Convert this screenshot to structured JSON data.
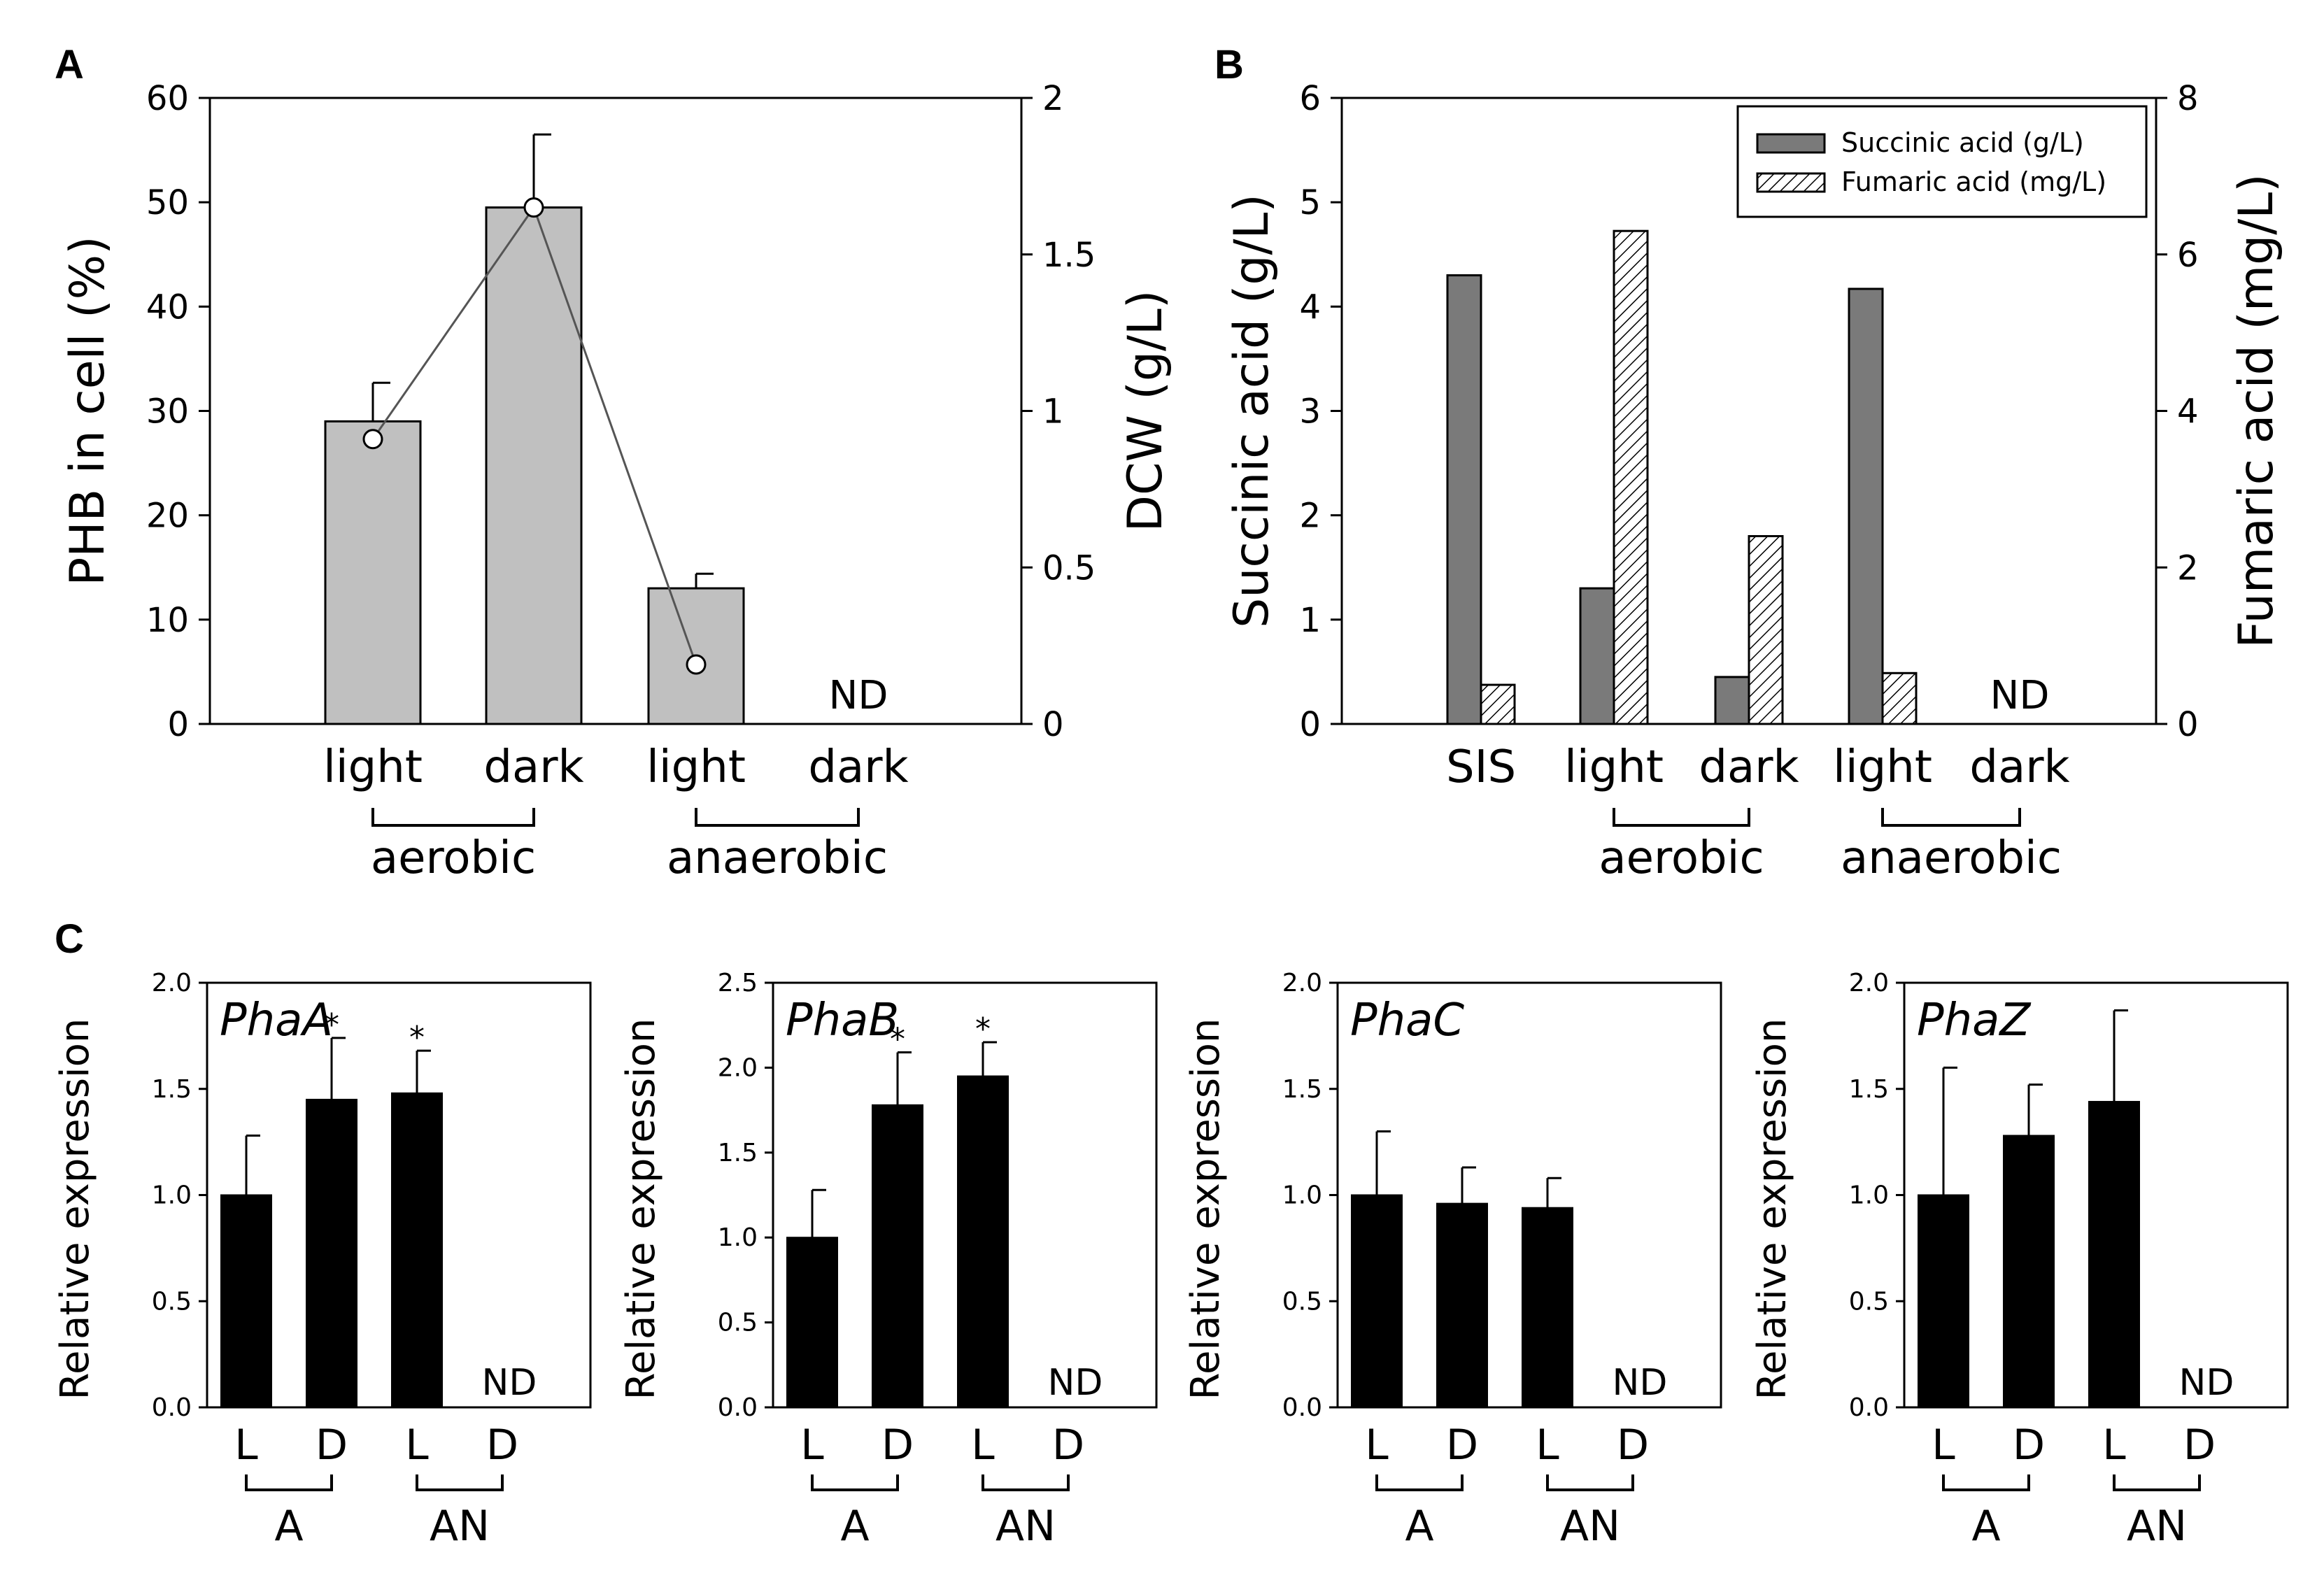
{
  "chart_data": [
    {
      "panel": "A",
      "type": "bar",
      "categories": [
        "light",
        "dark",
        "light",
        "dark"
      ],
      "groups": [
        {
          "label": "aerobic",
          "members": [
            0,
            1
          ]
        },
        {
          "label": "anaerobic",
          "members": [
            2,
            3
          ]
        }
      ],
      "series": [
        {
          "name": "PHB in cell (%)",
          "type": "bar",
          "axis": "left",
          "values": [
            29,
            49.5,
            13,
            null
          ],
          "errors": [
            3.7,
            7,
            1.4,
            null
          ]
        },
        {
          "name": "DCW (g/L)",
          "type": "line",
          "axis": "right",
          "values": [
            0.91,
            1.65,
            0.19,
            null
          ]
        }
      ],
      "ylabel": "PHB in cell (%)",
      "y2label": "DCW (g/L)",
      "ylim": [
        0,
        60
      ],
      "yticks": [
        0,
        10,
        20,
        30,
        40,
        50,
        60
      ],
      "y2lim": [
        0,
        2
      ],
      "y2ticks": [
        0,
        0.5,
        1,
        1.5,
        2
      ],
      "y2ticklabels": [
        "0",
        "0.5",
        "1",
        "1.5",
        "2"
      ],
      "annotations": [
        {
          "category": 3,
          "text": "ND"
        }
      ],
      "colors": {
        "bar": "#c0c0c0",
        "line": "#555555",
        "marker": "#ffffff"
      }
    },
    {
      "panel": "B",
      "type": "bar",
      "categories": [
        "SIS",
        "light",
        "dark",
        "light",
        "dark"
      ],
      "groups": [
        {
          "label": "aerobic",
          "members": [
            1,
            2
          ]
        },
        {
          "label": "anaerobic",
          "members": [
            3,
            4
          ]
        }
      ],
      "series": [
        {
          "name": "Succinic acid (g/L)",
          "axis": "left",
          "pattern": "solid",
          "values": [
            4.3,
            1.3,
            0.45,
            4.17,
            null
          ]
        },
        {
          "name": "Fumaric acid (mg/L)",
          "axis": "right",
          "pattern": "hatched",
          "values": [
            0.5,
            6.3,
            2.4,
            0.65,
            null
          ]
        }
      ],
      "ylabel": "Succinic acid (g/L)",
      "y2label": "Fumaric acid (mg/L)",
      "ylim": [
        0,
        6
      ],
      "yticks": [
        0,
        1,
        2,
        3,
        4,
        5,
        6
      ],
      "y2lim": [
        0,
        8
      ],
      "y2ticks": [
        0,
        2,
        4,
        6,
        8
      ],
      "legend": {
        "position": "top-right",
        "entries": [
          "Succinic acid (g/L)",
          "Fumaric acid (mg/L)"
        ]
      },
      "annotations": [
        {
          "category": 4,
          "text": "ND"
        }
      ],
      "colors": {
        "succinic": "#7a7a7a",
        "fumaric": "#ffffff"
      }
    },
    {
      "panel": "C",
      "type": "bar",
      "gene": "PhaA",
      "categories": [
        "L",
        "D",
        "L",
        "D"
      ],
      "groups": [
        {
          "label": "A",
          "members": [
            0,
            1
          ]
        },
        {
          "label": "AN",
          "members": [
            2,
            3
          ]
        }
      ],
      "values": [
        1.0,
        1.45,
        1.48,
        null
      ],
      "errors": [
        0.28,
        0.29,
        0.2,
        null
      ],
      "significance": [
        "",
        "*",
        "*",
        ""
      ],
      "ylabel": "Relative expression",
      "ylim": [
        0,
        2.0
      ],
      "yticks": [
        0,
        0.5,
        1,
        1.5,
        2
      ],
      "yticklabels": [
        "0.0",
        "0.5",
        "1.0",
        "1.5",
        "2.0"
      ],
      "annotations": [
        {
          "category": 3,
          "text": "ND"
        }
      ]
    },
    {
      "panel": "C",
      "type": "bar",
      "gene": "PhaB",
      "categories": [
        "L",
        "D",
        "L",
        "D"
      ],
      "groups": [
        {
          "label": "A",
          "members": [
            0,
            1
          ]
        },
        {
          "label": "AN",
          "members": [
            2,
            3
          ]
        }
      ],
      "values": [
        1.0,
        1.78,
        1.95,
        null
      ],
      "errors": [
        0.28,
        0.31,
        0.2,
        null
      ],
      "significance": [
        "",
        "*",
        "*",
        ""
      ],
      "ylabel": "Relative expression",
      "ylim": [
        0,
        2.5
      ],
      "yticks": [
        0,
        0.5,
        1,
        1.5,
        2,
        2.5
      ],
      "yticklabels": [
        "0.0",
        "0.5",
        "1.0",
        "1.5",
        "2.0",
        "2.5"
      ],
      "annotations": [
        {
          "category": 3,
          "text": "ND"
        }
      ]
    },
    {
      "panel": "C",
      "type": "bar",
      "gene": "PhaC",
      "categories": [
        "L",
        "D",
        "L",
        "D"
      ],
      "groups": [
        {
          "label": "A",
          "members": [
            0,
            1
          ]
        },
        {
          "label": "AN",
          "members": [
            2,
            3
          ]
        }
      ],
      "values": [
        1.0,
        0.96,
        0.94,
        null
      ],
      "errors": [
        0.3,
        0.17,
        0.14,
        null
      ],
      "significance": [
        "",
        "",
        "",
        ""
      ],
      "ylabel": "Relative expression",
      "ylim": [
        0,
        2.0
      ],
      "yticks": [
        0,
        0.5,
        1,
        1.5,
        2
      ],
      "yticklabels": [
        "0.0",
        "0.5",
        "1.0",
        "1.5",
        "2.0"
      ],
      "annotations": [
        {
          "category": 3,
          "text": "ND"
        }
      ]
    },
    {
      "panel": "C",
      "type": "bar",
      "gene": "PhaZ",
      "categories": [
        "L",
        "D",
        "L",
        "D"
      ],
      "groups": [
        {
          "label": "A",
          "members": [
            0,
            1
          ]
        },
        {
          "label": "AN",
          "members": [
            2,
            3
          ]
        }
      ],
      "values": [
        1.0,
        1.28,
        1.44,
        null
      ],
      "errors": [
        0.6,
        0.24,
        0.43,
        null
      ],
      "significance": [
        "",
        "",
        "",
        ""
      ],
      "ylabel": "Relative expression",
      "ylim": [
        0,
        2.0
      ],
      "yticks": [
        0,
        0.5,
        1,
        1.5,
        2
      ],
      "yticklabels": [
        "0.0",
        "0.5",
        "1.0",
        "1.5",
        "2.0"
      ],
      "annotations": [
        {
          "category": 3,
          "text": "ND"
        }
      ]
    }
  ],
  "panel_letters": [
    "A",
    "B",
    "C"
  ]
}
